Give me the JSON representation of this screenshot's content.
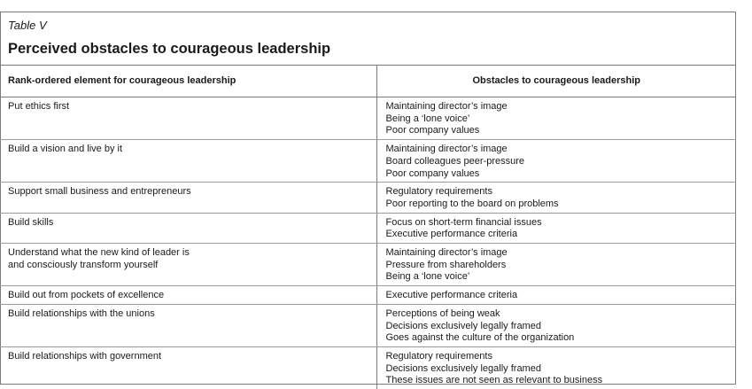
{
  "caption": "Table V",
  "title": "Perceived obstacles to courageous leadership",
  "headers": {
    "col1": "Rank-ordered element for courageous leadership",
    "col2": "Obstacles to courageous leadership"
  },
  "rows": [
    {
      "element": [
        "Put ethics first"
      ],
      "obstacles": [
        "Maintaining director’s image",
        "Being a ‘lone voice’",
        "Poor company values"
      ]
    },
    {
      "element": [
        "Build a vision and live by it"
      ],
      "obstacles": [
        "Maintaining director’s image",
        "Board colleagues peer-pressure",
        "Poor company values"
      ]
    },
    {
      "element": [
        "Support small business and entrepreneurs"
      ],
      "obstacles": [
        "Regulatory requirements",
        "Poor reporting to the board on problems"
      ]
    },
    {
      "element": [
        "Build skills"
      ],
      "obstacles": [
        "Focus on short-term financial issues",
        "Executive performance criteria"
      ]
    },
    {
      "element": [
        "Understand what the new kind of leader is",
        "and consciously transform yourself"
      ],
      "obstacles": [
        "Maintaining director’s image",
        "Pressure from shareholders",
        "Being a ‘lone voice’"
      ]
    },
    {
      "element": [
        "Build out from pockets of excellence"
      ],
      "obstacles": [
        "Executive performance criteria"
      ]
    },
    {
      "element": [
        "Build relationships with the unions"
      ],
      "obstacles": [
        "Perceptions of being weak",
        "Decisions exclusively legally framed",
        "Goes against the culture of the organization"
      ]
    },
    {
      "element": [
        "Build relationships with government"
      ],
      "obstacles": [
        "Regulatory requirements",
        "Decisions exclusively legally framed",
        "These issues are not seen as relevant to business"
      ]
    }
  ]
}
